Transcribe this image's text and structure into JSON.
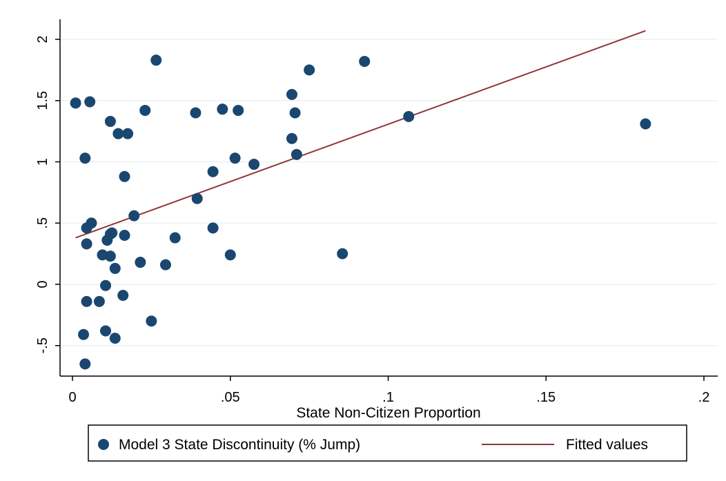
{
  "chart_data": {
    "type": "scatter",
    "title": "",
    "xlabel": "State Non-Citizen Proportion",
    "ylabel": "",
    "xlim": [
      0,
      0.2
    ],
    "ylim": [
      -0.75,
      2.15
    ],
    "xticks": [
      0,
      0.05,
      0.1,
      0.15,
      0.2
    ],
    "xtick_labels": [
      "0",
      ".05",
      ".1",
      ".15",
      ".2"
    ],
    "yticks": [
      -0.5,
      0,
      0.5,
      1,
      1.5,
      2
    ],
    "ytick_labels": [
      "-.5",
      "0",
      ".5",
      "1",
      "1.5",
      "2"
    ],
    "grid": true,
    "legend": {
      "position": "bottom",
      "entries": [
        {
          "label": "Model 3 State Discontinuity (% Jump)",
          "marker": "circle",
          "color": "#1a476f"
        },
        {
          "label": "Fitted values",
          "marker": "line",
          "color": "#90353b"
        }
      ]
    },
    "series": [
      {
        "name": "Model 3 State Discontinuity (% Jump)",
        "kind": "scatter",
        "color": "#1a476f",
        "points": [
          [
            0.001,
            1.48
          ],
          [
            0.0055,
            1.49
          ],
          [
            0.004,
            1.03
          ],
          [
            0.0045,
            0.46
          ],
          [
            0.006,
            0.5
          ],
          [
            0.0045,
            0.33
          ],
          [
            0.0045,
            -0.14
          ],
          [
            0.0035,
            -0.41
          ],
          [
            0.004,
            -0.65
          ],
          [
            0.0085,
            -0.14
          ],
          [
            0.0095,
            0.24
          ],
          [
            0.0105,
            -0.01
          ],
          [
            0.0105,
            -0.38
          ],
          [
            0.011,
            0.36
          ],
          [
            0.012,
            0.41
          ],
          [
            0.0125,
            0.42
          ],
          [
            0.012,
            0.23
          ],
          [
            0.0135,
            0.13
          ],
          [
            0.0135,
            -0.44
          ],
          [
            0.012,
            1.33
          ],
          [
            0.0145,
            1.23
          ],
          [
            0.0175,
            1.23
          ],
          [
            0.016,
            -0.09
          ],
          [
            0.0165,
            0.4
          ],
          [
            0.0165,
            0.88
          ],
          [
            0.0195,
            0.56
          ],
          [
            0.0215,
            0.18
          ],
          [
            0.023,
            1.42
          ],
          [
            0.025,
            -0.3
          ],
          [
            0.0265,
            1.83
          ],
          [
            0.0295,
            0.16
          ],
          [
            0.0325,
            0.38
          ],
          [
            0.039,
            1.4
          ],
          [
            0.0395,
            0.7
          ],
          [
            0.0445,
            0.92
          ],
          [
            0.0445,
            0.46
          ],
          [
            0.0475,
            1.43
          ],
          [
            0.05,
            0.24
          ],
          [
            0.0515,
            1.03
          ],
          [
            0.0525,
            1.42
          ],
          [
            0.0575,
            0.98
          ],
          [
            0.0695,
            1.55
          ],
          [
            0.0695,
            1.19
          ],
          [
            0.0705,
            1.4
          ],
          [
            0.071,
            1.06
          ],
          [
            0.075,
            1.75
          ],
          [
            0.0855,
            0.25
          ],
          [
            0.0925,
            1.82
          ],
          [
            0.1065,
            1.37
          ],
          [
            0.1815,
            1.31
          ]
        ]
      },
      {
        "name": "Fitted values",
        "kind": "line",
        "color": "#90353b",
        "x": [
          0.001,
          0.1815
        ],
        "y": [
          0.38,
          2.07
        ]
      }
    ],
    "gridline_color": "#eaf2f3",
    "axis_color": "#000000"
  }
}
